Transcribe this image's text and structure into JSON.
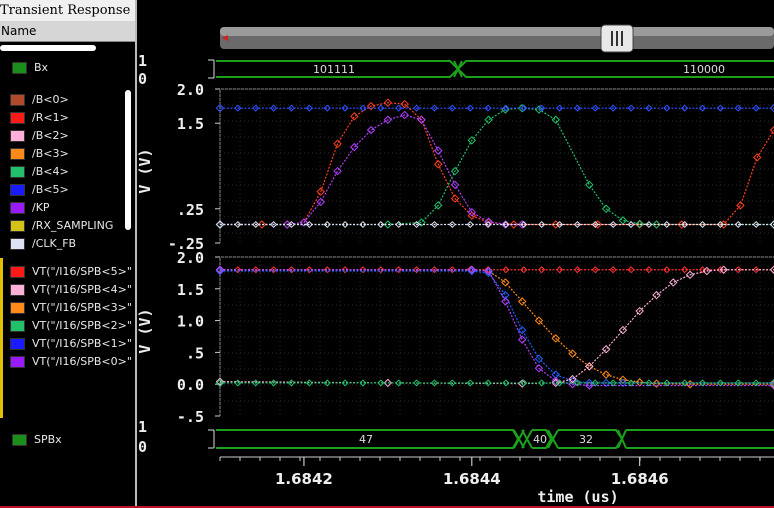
{
  "window": {
    "title": "Transient Response"
  },
  "browser": {
    "column_header": "Name",
    "items": [
      {
        "label": "Bx",
        "color": "#1a8f1a"
      },
      {
        "label": "/B<0>",
        "color": "#b04a2a"
      },
      {
        "label": "/R<1>",
        "color": "#ff1a1a"
      },
      {
        "label": "/B<2>",
        "color": "#ffb0d8"
      },
      {
        "label": "/B<3>",
        "color": "#ff8a1a"
      },
      {
        "label": "/B<4>",
        "color": "#21c06a"
      },
      {
        "label": "/B<5>",
        "color": "#1a1aff"
      },
      {
        "label": "/KP",
        "color": "#9a1aff"
      },
      {
        "label": "/RX_SAMPLING",
        "color": "#d4c21a"
      },
      {
        "label": "/CLK_FB",
        "color": "#dde2f5"
      },
      {
        "label": "VT(\"/I16/SPB<5>\"",
        "color": "#ff1a1a"
      },
      {
        "label": "VT(\"/I16/SPB<4>\"",
        "color": "#ffb0d8"
      },
      {
        "label": "VT(\"/I16/SPB<3>\"",
        "color": "#ff8a1a"
      },
      {
        "label": "VT(\"/I16/SPB<2>\"",
        "color": "#21c06a"
      },
      {
        "label": "VT(\"/I16/SPB<1>\"",
        "color": "#1a1aff"
      },
      {
        "label": "VT(\"/I16/SPB<0>\"",
        "color": "#9a1aff"
      },
      {
        "label": "SPBx",
        "color": "#1a8f1a"
      }
    ]
  },
  "bus_top": {
    "hi": "1",
    "lo": "0",
    "values": [
      "101111",
      "110000"
    ]
  },
  "bus_bottom": {
    "hi": "1",
    "lo": "0",
    "values": [
      "47",
      "40",
      "32"
    ]
  },
  "chart_data": [
    {
      "type": "line",
      "title": "",
      "xlabel": "time (us)",
      "ylabel": "V (V)",
      "xlim": [
        1.6841,
        1.68476
      ],
      "ylim": [
        -0.25,
        2.0
      ],
      "ytick_labels": [
        "2.0",
        "1.5",
        ".25",
        "-.25"
      ],
      "xtick_labels": [
        "1.6842",
        "1.6844",
        "1.6846"
      ],
      "series": [
        {
          "name": "/R<1>",
          "color": "#ff4020",
          "x": [
            1.6841,
            1.68415,
            1.68418,
            1.6842,
            1.68422,
            1.68424,
            1.68426,
            1.68428,
            1.6843,
            1.68432,
            1.68434,
            1.68436,
            1.68438,
            1.6844,
            1.68442,
            1.68445,
            1.6845,
            1.68455,
            1.6846,
            1.68465,
            1.6847,
            1.68472,
            1.68474,
            1.68476
          ],
          "y": [
            0.02,
            0.02,
            0.02,
            0.05,
            0.5,
            1.2,
            1.6,
            1.75,
            1.8,
            1.78,
            1.55,
            0.9,
            0.4,
            0.15,
            0.05,
            0.02,
            0.02,
            0.02,
            0.02,
            0.02,
            0.02,
            0.3,
            1.0,
            1.4
          ]
        },
        {
          "name": "/KP",
          "color": "#b040ff",
          "x": [
            1.6841,
            1.68418,
            1.6842,
            1.68422,
            1.68424,
            1.68426,
            1.68428,
            1.6843,
            1.68432,
            1.68434,
            1.68436,
            1.68438,
            1.6844,
            1.68442,
            1.68444,
            1.68446
          ],
          "y": [
            0.02,
            0.02,
            0.05,
            0.35,
            0.8,
            1.15,
            1.4,
            1.55,
            1.62,
            1.55,
            1.1,
            0.6,
            0.2,
            0.06,
            0.02,
            0.02
          ]
        },
        {
          "name": "/B<4>",
          "color": "#21c06a",
          "x": [
            1.6841,
            1.6843,
            1.68434,
            1.68436,
            1.68438,
            1.6844,
            1.68442,
            1.68444,
            1.68446,
            1.68448,
            1.6845,
            1.68454,
            1.68456,
            1.68458,
            1.6846,
            1.68462,
            1.68476
          ],
          "y": [
            0.02,
            0.02,
            0.05,
            0.3,
            0.8,
            1.25,
            1.55,
            1.7,
            1.72,
            1.7,
            1.55,
            0.6,
            0.25,
            0.08,
            0.03,
            0.02,
            0.02
          ]
        },
        {
          "name": "/B<5>",
          "color": "#3050ff",
          "x": [
            1.6841,
            1.68476
          ],
          "y": [
            1.72,
            1.72
          ]
        },
        {
          "name": "/CLK_FB",
          "color": "#dde2f5",
          "x": [
            1.6841,
            1.68476
          ],
          "y": [
            0.02,
            0.02
          ]
        }
      ]
    },
    {
      "type": "line",
      "title": "",
      "xlabel": "time (us)",
      "ylabel": "V (V)",
      "xlim": [
        1.6841,
        1.68476
      ],
      "ylim": [
        -0.5,
        2.0
      ],
      "ytick_labels": [
        "2.0",
        "1.5",
        "1.0",
        ".5",
        "0.0",
        "-.5"
      ],
      "xtick_labels": [
        "1.6842",
        "1.6844",
        "1.6846"
      ],
      "series": [
        {
          "name": "VT(\"/I16/SPB<5>\"",
          "color": "#ff3030",
          "x": [
            1.6841,
            1.68476
          ],
          "y": [
            1.8,
            1.8
          ]
        },
        {
          "name": "VT(\"/I16/SPB<3>\"",
          "color": "#ff8a1a",
          "x": [
            1.6841,
            1.6844,
            1.68442,
            1.68444,
            1.68446,
            1.68448,
            1.6845,
            1.68452,
            1.68454,
            1.68456,
            1.68458,
            1.6846,
            1.68462,
            1.68466,
            1.68476
          ],
          "y": [
            1.8,
            1.8,
            1.78,
            1.6,
            1.3,
            1.0,
            0.72,
            0.48,
            0.28,
            0.15,
            0.07,
            0.03,
            0.01,
            0.0,
            0.0
          ]
        },
        {
          "name": "VT(\"/I16/SPB<1>\"",
          "color": "#2060ff",
          "x": [
            1.6841,
            1.6844,
            1.68442,
            1.68444,
            1.68446,
            1.68448,
            1.6845,
            1.68452,
            1.68454,
            1.68456,
            1.68458,
            1.68476
          ],
          "y": [
            1.78,
            1.78,
            1.75,
            1.4,
            0.85,
            0.4,
            0.15,
            0.05,
            0.02,
            0.02,
            0.02,
            0.02
          ]
        },
        {
          "name": "VT(\"/I16/SPB<0>\"",
          "color": "#b040ff",
          "x": [
            1.6841,
            1.6844,
            1.68442,
            1.68444,
            1.68446,
            1.68448,
            1.6845,
            1.68452,
            1.68454,
            1.68476
          ],
          "y": [
            1.8,
            1.8,
            1.78,
            1.3,
            0.7,
            0.25,
            0.05,
            0.0,
            -0.02,
            -0.02
          ]
        },
        {
          "name": "VT(\"/I16/SPB<4>\"",
          "color": "#ffb0d8",
          "x": [
            1.6841,
            1.6843,
            1.68446,
            1.6845,
            1.68452,
            1.68454,
            1.68456,
            1.68458,
            1.6846,
            1.68462,
            1.68464,
            1.68466,
            1.68468,
            1.6847,
            1.68476
          ],
          "y": [
            0.04,
            0.02,
            0.01,
            0.02,
            0.08,
            0.28,
            0.55,
            0.85,
            1.15,
            1.4,
            1.6,
            1.72,
            1.78,
            1.8,
            1.8
          ]
        },
        {
          "name": "VT(\"/I16/SPB<2>\"",
          "color": "#21c06a",
          "x": [
            1.6841,
            1.68476
          ],
          "y": [
            0.02,
            0.02
          ]
        }
      ]
    }
  ]
}
